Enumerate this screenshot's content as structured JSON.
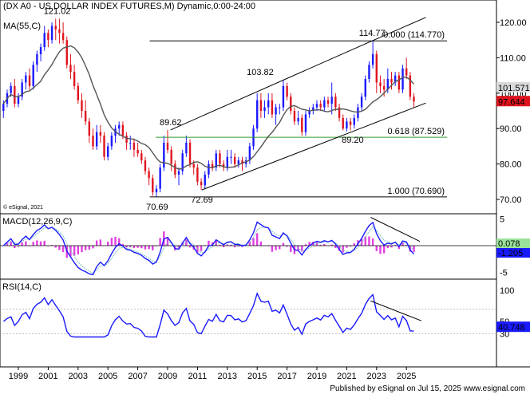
{
  "header": {
    "title": "(DX A0 - US DOLLAR INDEX FUTURES,M) Dynamic,0:00-24:00",
    "ma_label": "MA(55,C)"
  },
  "watermark": "© eSignal, 2021",
  "footer": "Published by eSignal on Jul 15, 2025 www.esignal.com",
  "colors": {
    "up": "#1a1aff",
    "down": "#e0141e",
    "ma": "#555555",
    "macd": "#1a1aff",
    "signal": "#7bbfbf",
    "hist": "#e040e0",
    "rsi": "#1a1aff",
    "fib_green": "#2e9b2e",
    "price_badge_up": "#1a1aff",
    "price_badge_down": "#e0141e"
  },
  "chart_data": [
    {
      "type": "candlestick",
      "panel": "price",
      "x_ticks": [
        "1999",
        "2001",
        "2003",
        "2005",
        "2007",
        "2009",
        "2011",
        "2013",
        "2015",
        "2017",
        "2019",
        "2021",
        "2023",
        "2025"
      ],
      "y_ticks": [
        "120.00",
        "110.00",
        "100.00",
        "90.00",
        "80.00",
        "70.00"
      ],
      "ylim": [
        67,
        125
      ],
      "key_points": [
        {
          "date": 2001.6,
          "value": 121.02,
          "label": "121.02"
        },
        {
          "date": 2008.3,
          "value": 70.69,
          "label": "70.69"
        },
        {
          "date": 2009.2,
          "value": 89.62,
          "label": "89.62"
        },
        {
          "date": 2011.3,
          "value": 72.69,
          "label": "72.69"
        },
        {
          "date": 2015.2,
          "value": 103.82,
          "label": "103.82"
        },
        {
          "date": 2021.4,
          "value": 89.2,
          "label": "89.20"
        },
        {
          "date": 2022.7,
          "value": 114.77,
          "label": "114.77"
        }
      ],
      "fib_levels": [
        {
          "label": "0.000 (114.770)",
          "value": 114.77
        },
        {
          "label": "0.618 (87.529)",
          "value": 87.529
        },
        {
          "label": "1.000 (70.690)",
          "value": 70.69
        }
      ],
      "channel": {
        "upper": [
          [
            2009.2,
            89.62
          ],
          [
            2022.7,
            114.77
          ],
          [
            2026.3,
            121.4
          ]
        ],
        "lower": [
          [
            2011.3,
            72.69
          ],
          [
            2021.4,
            89.2
          ],
          [
            2026.3,
            97.2
          ]
        ]
      },
      "last_close": "97.644",
      "ma_last": "101.571"
    },
    {
      "type": "line",
      "panel": "macd",
      "label": "MACD(12,26,9,C)",
      "y_ticks": [
        "5",
        "0",
        "-5"
      ],
      "ylim": [
        -6,
        6
      ],
      "series_values": [
        "0.078",
        "-1.205"
      ],
      "divergence_line": [
        [
          2022.6,
          5.3
        ],
        [
          2025.9,
          0.8
        ]
      ]
    },
    {
      "type": "line",
      "panel": "rsi",
      "label": "RSI(14,C)",
      "y_ticks": [
        "100",
        "50",
        "30"
      ],
      "ylim": [
        20,
        105
      ],
      "levels": [
        70,
        30
      ],
      "last_value": "40.748",
      "divergence_line": [
        [
          2022.6,
          83
        ],
        [
          2026.0,
          51
        ]
      ]
    }
  ],
  "candles": [
    [
      1998.0,
      95,
      98,
      93,
      97
    ],
    [
      1998.25,
      97,
      101,
      96,
      100
    ],
    [
      1998.5,
      100,
      103,
      99,
      102
    ],
    [
      1998.75,
      102,
      104,
      96,
      97
    ],
    [
      1999.0,
      97,
      100,
      96,
      99
    ],
    [
      1999.25,
      99,
      104,
      98,
      103
    ],
    [
      1999.5,
      103,
      106,
      101,
      105
    ],
    [
      1999.75,
      105,
      107,
      101,
      102
    ],
    [
      2000.0,
      102,
      109,
      101,
      108
    ],
    [
      2000.25,
      108,
      112,
      106,
      111
    ],
    [
      2000.5,
      111,
      114,
      109,
      113
    ],
    [
      2000.75,
      113,
      119,
      112,
      117
    ],
    [
      2001.0,
      117,
      118,
      113,
      115
    ],
    [
      2001.25,
      115,
      120,
      114,
      119
    ],
    [
      2001.5,
      119,
      121.02,
      115,
      118
    ],
    [
      2001.75,
      118,
      121,
      114,
      117
    ],
    [
      2002.0,
      117,
      120,
      114,
      115
    ],
    [
      2002.25,
      115,
      116,
      107,
      108
    ],
    [
      2002.5,
      108,
      111,
      104,
      106
    ],
    [
      2002.75,
      106,
      108,
      101,
      102
    ],
    [
      2003.0,
      102,
      103,
      97,
      98
    ],
    [
      2003.25,
      98,
      100,
      93,
      95
    ],
    [
      2003.5,
      95,
      98,
      91,
      92
    ],
    [
      2003.75,
      92,
      93,
      86,
      88
    ],
    [
      2004.0,
      88,
      90,
      84,
      85
    ],
    [
      2004.25,
      85,
      91,
      84,
      89
    ],
    [
      2004.5,
      89,
      91,
      86,
      88
    ],
    [
      2004.75,
      88,
      89,
      81,
      82
    ],
    [
      2005.0,
      82,
      86,
      81,
      85
    ],
    [
      2005.25,
      85,
      89,
      84,
      88
    ],
    [
      2005.5,
      88,
      91,
      86,
      90
    ],
    [
      2005.75,
      90,
      92,
      88,
      91
    ],
    [
      2006.0,
      91,
      92,
      87,
      88
    ],
    [
      2006.25,
      88,
      89,
      84,
      86
    ],
    [
      2006.5,
      86,
      88,
      84,
      86
    ],
    [
      2006.75,
      86,
      87,
      82,
      84
    ],
    [
      2007.0,
      84,
      86,
      82,
      83
    ],
    [
      2007.25,
      83,
      84,
      80,
      81
    ],
    [
      2007.5,
      81,
      82,
      77,
      78
    ],
    [
      2007.75,
      78,
      79,
      74,
      76
    ],
    [
      2008.0,
      76,
      77,
      71,
      72
    ],
    [
      2008.25,
      72,
      74,
      70.69,
      73
    ],
    [
      2008.5,
      73,
      80,
      72,
      79
    ],
    [
      2008.75,
      79,
      88,
      78,
      86
    ],
    [
      2009.0,
      86,
      89.62,
      83,
      84
    ],
    [
      2009.25,
      84,
      85,
      78,
      80
    ],
    [
      2009.5,
      80,
      81,
      76,
      77
    ],
    [
      2009.75,
      77,
      79,
      74,
      78
    ],
    [
      2010.0,
      78,
      84,
      77,
      83
    ],
    [
      2010.25,
      83,
      88,
      82,
      86
    ],
    [
      2010.5,
      86,
      87,
      79,
      80
    ],
    [
      2010.75,
      80,
      81,
      77,
      79
    ],
    [
      2011.0,
      79,
      80,
      74,
      75
    ],
    [
      2011.25,
      75,
      76,
      72.69,
      74
    ],
    [
      2011.5,
      74,
      78,
      73,
      77
    ],
    [
      2011.75,
      77,
      81,
      76,
      80
    ],
    [
      2012.0,
      80,
      81,
      78,
      79
    ],
    [
      2012.25,
      79,
      84,
      78,
      83
    ],
    [
      2012.5,
      83,
      84,
      79,
      80
    ],
    [
      2012.75,
      80,
      81,
      78,
      79
    ],
    [
      2013.0,
      79,
      84,
      78,
      82
    ],
    [
      2013.25,
      82,
      84,
      80,
      82
    ],
    [
      2013.5,
      82,
      83,
      79,
      80
    ],
    [
      2013.75,
      80,
      82,
      79,
      81
    ],
    [
      2014.0,
      81,
      82,
      78,
      80
    ],
    [
      2014.25,
      80,
      82,
      79,
      81
    ],
    [
      2014.5,
      81,
      86,
      80,
      85
    ],
    [
      2014.75,
      85,
      91,
      84,
      90
    ],
    [
      2015.0,
      90,
      100,
      89,
      98
    ],
    [
      2015.25,
      98,
      100,
      93,
      95
    ],
    [
      2015.5,
      95,
      98,
      93,
      96
    ],
    [
      2015.75,
      96,
      100,
      94,
      98
    ],
    [
      2016.0,
      98,
      100,
      93,
      94
    ],
    [
      2016.25,
      94,
      97,
      91,
      96
    ],
    [
      2016.5,
      96,
      97,
      94,
      96
    ],
    [
      2016.75,
      96,
      103.82,
      95,
      102
    ],
    [
      2017.0,
      102,
      103,
      98,
      99
    ],
    [
      2017.25,
      99,
      100,
      94,
      95
    ],
    [
      2017.5,
      95,
      96,
      91,
      92
    ],
    [
      2017.75,
      92,
      95,
      91,
      93
    ],
    [
      2018.0,
      93,
      94,
      88,
      89
    ],
    [
      2018.25,
      89,
      95,
      88,
      94
    ],
    [
      2018.5,
      94,
      96,
      93,
      95
    ],
    [
      2018.75,
      95,
      97,
      94,
      96
    ],
    [
      2019.0,
      96,
      98,
      95,
      97
    ],
    [
      2019.25,
      97,
      98,
      95,
      96
    ],
    [
      2019.5,
      96,
      99,
      95,
      98
    ],
    [
      2019.75,
      98,
      99,
      96,
      97
    ],
    [
      2020.0,
      97,
      103,
      94,
      99
    ],
    [
      2020.25,
      99,
      100,
      95,
      96
    ],
    [
      2020.5,
      96,
      97,
      92,
      93
    ],
    [
      2020.75,
      93,
      94,
      89.5,
      90
    ],
    [
      2021.0,
      90,
      93,
      89.2,
      92
    ],
    [
      2021.25,
      92,
      93,
      89.5,
      91
    ],
    [
      2021.5,
      91,
      94,
      90,
      93
    ],
    [
      2021.75,
      93,
      97,
      92,
      96
    ],
    [
      2022.0,
      96,
      100,
      95,
      99
    ],
    [
      2022.25,
      99,
      105,
      98,
      104
    ],
    [
      2022.5,
      104,
      109,
      103,
      108
    ],
    [
      2022.75,
      108,
      114.77,
      107,
      111
    ],
    [
      2023.0,
      111,
      112,
      100,
      103
    ],
    [
      2023.25,
      103,
      105,
      100,
      102
    ],
    [
      2023.5,
      102,
      104,
      99,
      101
    ],
    [
      2023.75,
      101,
      107,
      100,
      104
    ],
    [
      2024.0,
      104,
      106,
      101,
      103
    ],
    [
      2024.25,
      103,
      106,
      102,
      105
    ],
    [
      2024.5,
      105,
      106,
      100,
      101
    ],
    [
      2024.75,
      101,
      108,
      100,
      107
    ],
    [
      2025.0,
      107,
      110,
      104,
      105
    ],
    [
      2025.25,
      105,
      106,
      98,
      99
    ],
    [
      2025.5,
      99,
      100,
      96,
      97.644
    ]
  ]
}
